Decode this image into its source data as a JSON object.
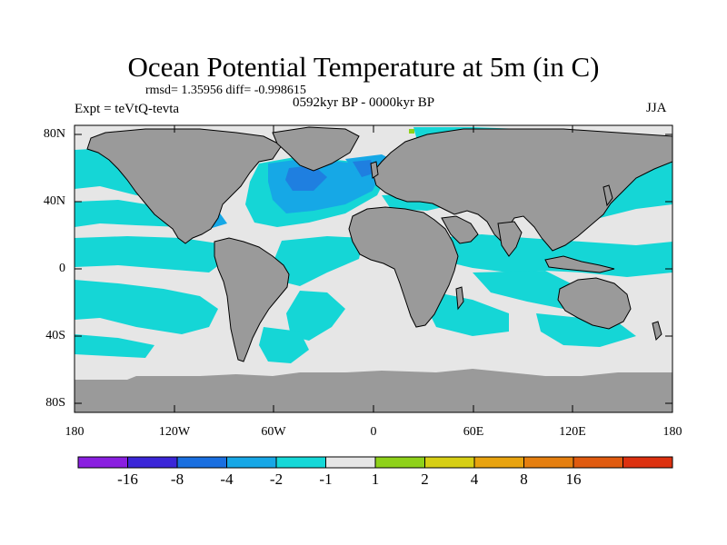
{
  "title": "Ocean Potential Temperature at 5m (in C)",
  "stats": "rmsd= 1.35956 diff= -0.998615",
  "experiment": "Expt = teVtQ-tevta",
  "period": "0592kyr BP - 0000kyr BP",
  "season": "JJA",
  "lat_labels": [
    "80N",
    "40N",
    "0",
    "40S",
    "80S"
  ],
  "lon_labels": [
    "180",
    "120W",
    "60W",
    "0",
    "60E",
    "120E",
    "180"
  ],
  "colors": {
    "land": "#9a9a9a",
    "neutral": "#e6e6e6",
    "cyan": "#15d6d6",
    "light_blue": "#16a8e6",
    "mid_blue": "#1f7fe0",
    "deep_blue": "#2b2fd0"
  },
  "colorbar": {
    "colors": [
      "#8a1fe0",
      "#3b26d8",
      "#1a6fe0",
      "#17a7e6",
      "#15d8d8",
      "#e6e6e6",
      "#8ed11a",
      "#d7cf14",
      "#e8a30f",
      "#e57f10",
      "#e05b10",
      "#dc3110"
    ],
    "labels": [
      "-16",
      "-8",
      "-4",
      "-2",
      "-1",
      "1",
      "2",
      "4",
      "8",
      "16"
    ]
  }
}
